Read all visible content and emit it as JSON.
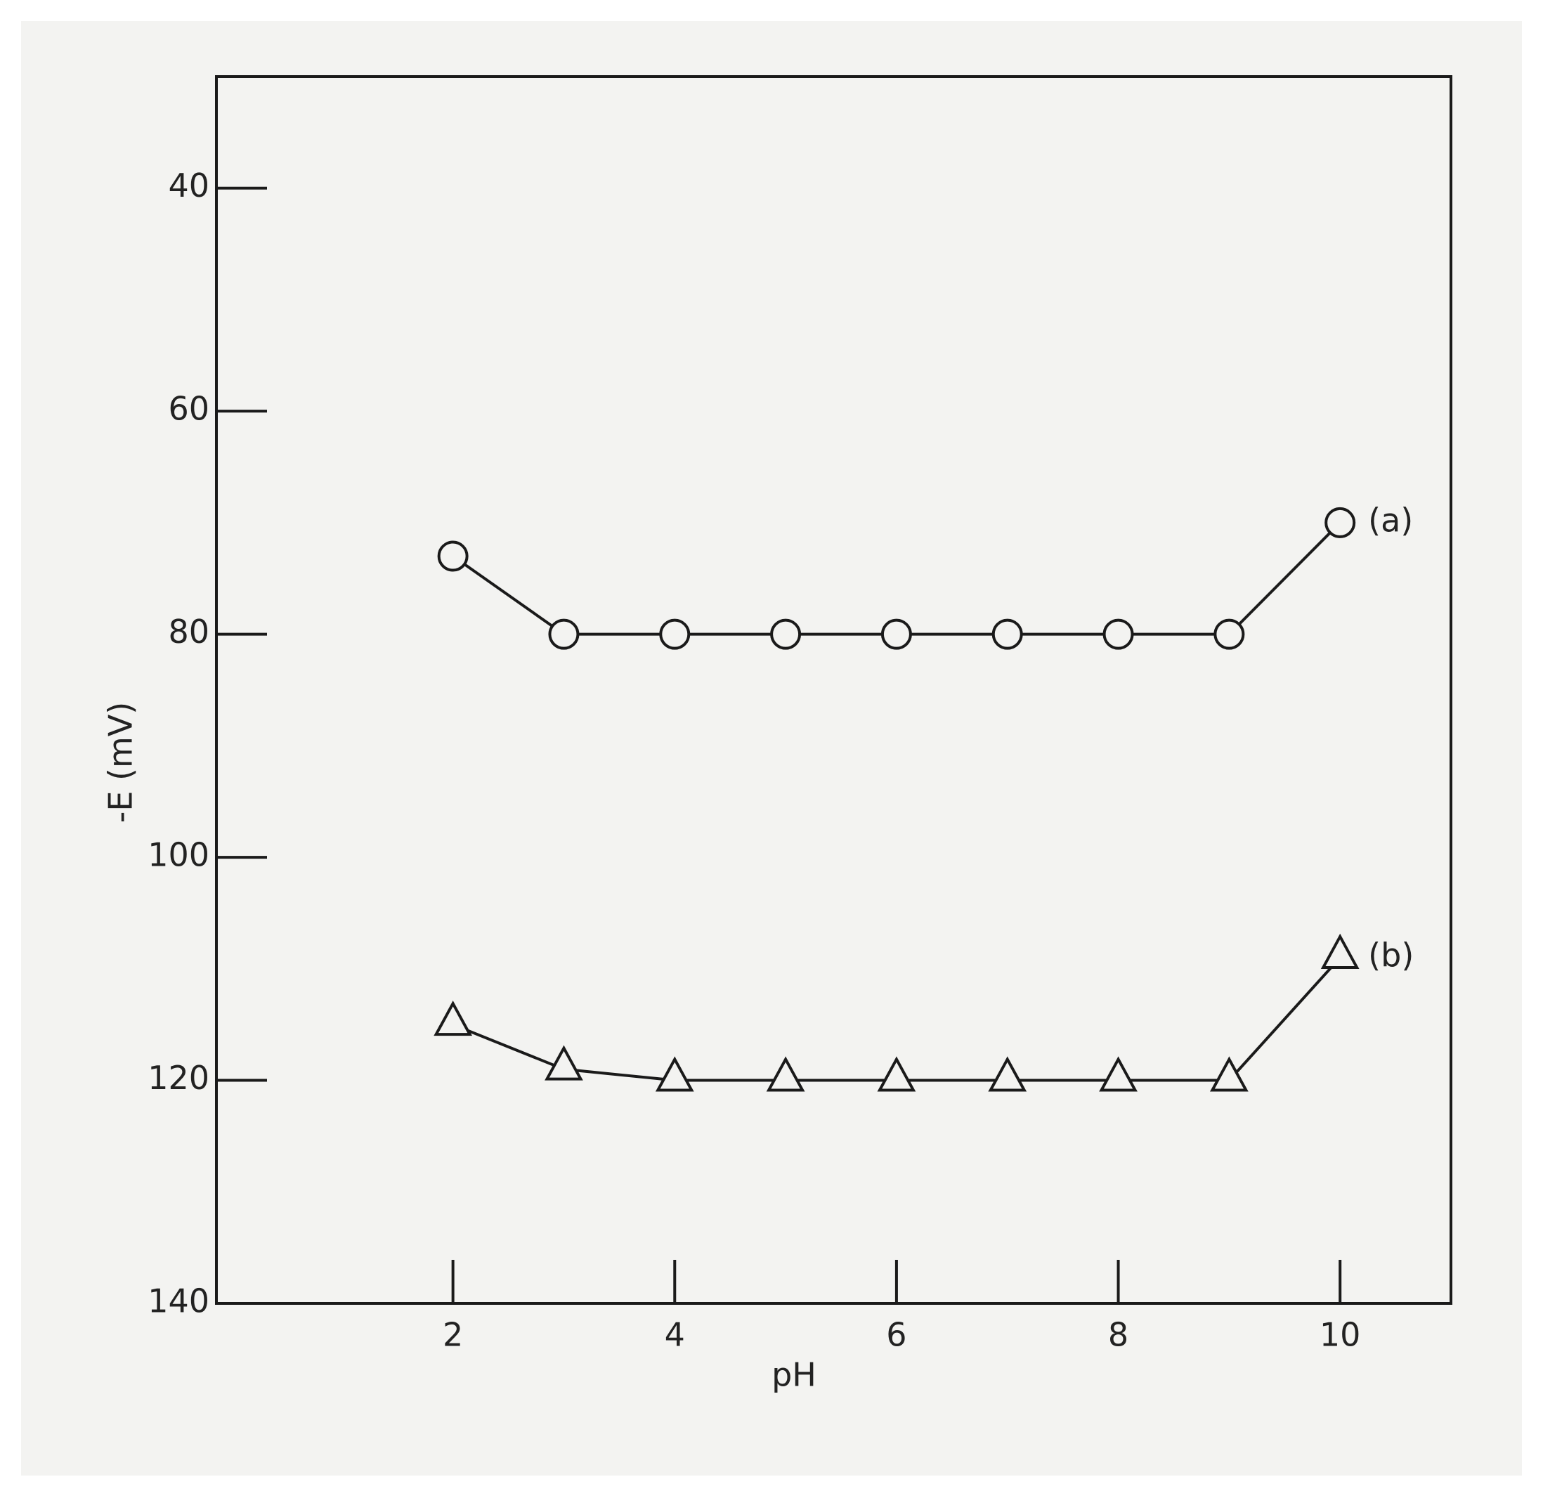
{
  "chart_data": {
    "type": "line",
    "x": [
      2,
      3,
      4,
      5,
      6,
      7,
      8,
      9,
      10
    ],
    "series": [
      {
        "name": "(a)",
        "color": "#1a1a1a",
        "marker": "circle",
        "values": [
          73,
          80,
          80,
          80,
          80,
          80,
          80,
          80,
          70
        ]
      },
      {
        "name": "(b)",
        "color": "#1a1a1a",
        "marker": "triangle",
        "values": [
          115,
          119,
          120,
          120,
          120,
          120,
          120,
          120,
          109
        ]
      }
    ],
    "xlabel": "pH",
    "ylabel": "-E (mV)",
    "xlim": [
      0,
      11
    ],
    "xticks": [
      2,
      4,
      6,
      8,
      10
    ],
    "ylim": [
      140,
      30
    ],
    "yticks": [
      40,
      60,
      80,
      100,
      120,
      140
    ],
    "grid": false
  }
}
